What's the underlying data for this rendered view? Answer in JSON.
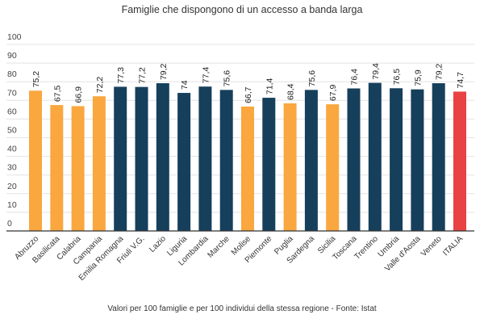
{
  "chart_data": {
    "type": "bar",
    "title": "Famiglie che dispongono di un accesso a banda larga",
    "footnote": "Valori per 100 famiglie e per 100 individui della stessa regione - Fonte: Istat",
    "xlabel": "",
    "ylabel": "",
    "ylim": [
      0,
      100
    ],
    "yticks": [
      0,
      10,
      20,
      30,
      40,
      50,
      60,
      70,
      80,
      90,
      100
    ],
    "grid": true,
    "categories": [
      "Abruzzo",
      "Basilicata",
      "Calabria",
      "Campania",
      "Emilia Romagna",
      "Friuli V.G.",
      "Lazio",
      "Liguria",
      "Lombardia",
      "Marche",
      "Molise",
      "Piemonte",
      "Puglia",
      "Sardegna",
      "Sicilia",
      "Toscana",
      "Trentino",
      "Umbria",
      "Valle d'Aosta",
      "Veneto",
      "ITALIA"
    ],
    "values": [
      75.2,
      67.5,
      66.9,
      72.2,
      77.3,
      77.2,
      79.2,
      74,
      77.4,
      75.6,
      66.7,
      71.4,
      68.4,
      75.6,
      67.9,
      76.4,
      79.4,
      76.5,
      75.9,
      79.2,
      74.7
    ],
    "value_labels": [
      "75,2",
      "67,5",
      "66,9",
      "72,2",
      "77,3",
      "77,2",
      "79,2",
      "74",
      "77,4",
      "75,6",
      "66,7",
      "71,4",
      "68,4",
      "75,6",
      "67,9",
      "76,4",
      "79,4",
      "76,5",
      "75,9",
      "79,2",
      "74,7"
    ],
    "bar_groups": [
      "south",
      "south",
      "south",
      "south",
      "north",
      "north",
      "north",
      "north",
      "north",
      "north",
      "south",
      "north",
      "south",
      "north",
      "south",
      "north",
      "north",
      "north",
      "north",
      "north",
      "italy"
    ],
    "colors": {
      "south": "#F9A73E",
      "north": "#163F5C",
      "italy": "#E84242"
    }
  }
}
